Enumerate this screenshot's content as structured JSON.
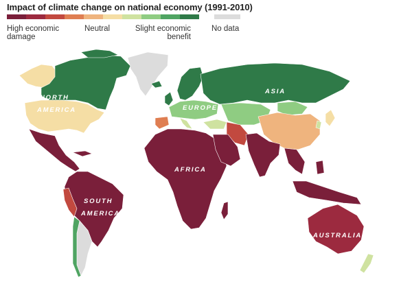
{
  "title": "Impact of climate change on national economy (1991-2010)",
  "legend": {
    "scale_colors": [
      "#7a1f3a",
      "#9c2a3f",
      "#c2493f",
      "#df7e52",
      "#efb47e",
      "#f5dea5",
      "#cfe2a0",
      "#8fcc82",
      "#4fa462",
      "#2f7a48"
    ],
    "nodata_color": "#dcdcdc",
    "label_left": "High economic damage",
    "label_left_line1": "High economic",
    "label_left_line2": "damage",
    "label_neutral": "Neutral",
    "label_benefit_line1": "Slight economic",
    "label_benefit_line2": "benefit",
    "label_nodata": "No data"
  },
  "continents": {
    "north_america_line1": "NORTH",
    "north_america_line2": "AMERICA",
    "south_america_line1": "SOUTH",
    "south_america_line2": "AMERICA",
    "europe": "EUROPE",
    "asia": "ASIA",
    "africa": "AFRICA",
    "australia": "AUSTRALIA"
  }
}
